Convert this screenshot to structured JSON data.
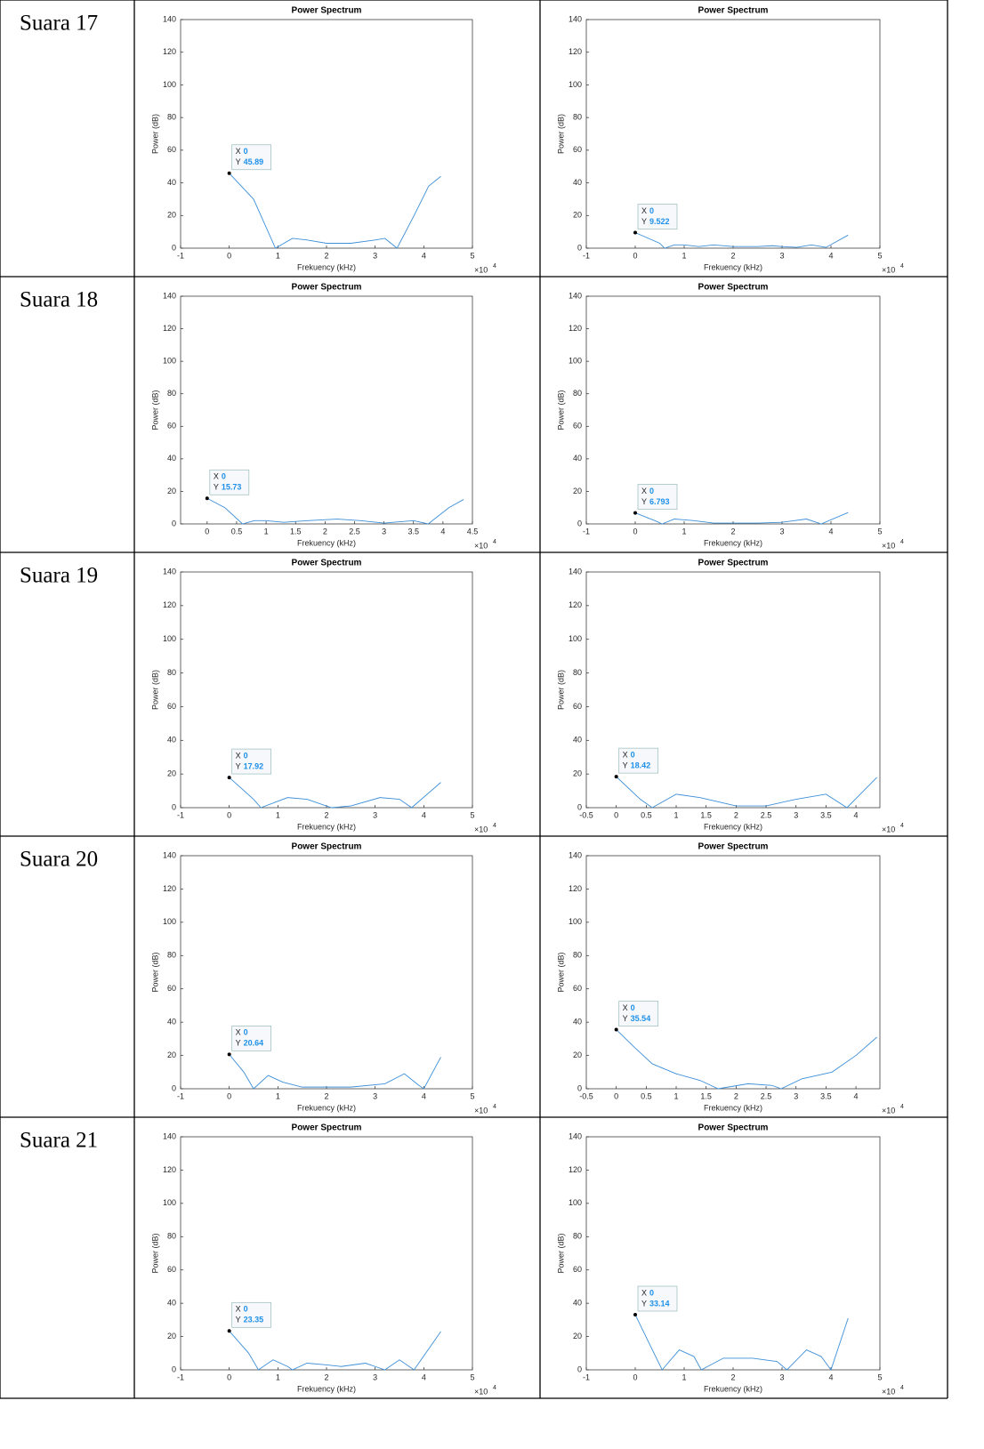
{
  "table": {
    "rows": [
      {
        "label": "Suara 17"
      },
      {
        "label": "Suara 18"
      },
      {
        "label": "Suara 19"
      },
      {
        "label": "Suara 20"
      },
      {
        "label": "Suara 21"
      }
    ]
  },
  "chart_data": [
    {
      "type": "line",
      "title": "Power Spectrum",
      "x_label": "Frekuency (kHz)",
      "y_label": "Power (dB)",
      "x_multiplier": "×10",
      "x_exponent": "4",
      "color": "#3d8fd8",
      "xlim": [
        -1,
        5
      ],
      "xticks": [
        -1,
        0,
        1,
        2,
        3,
        4,
        5
      ],
      "ylim": [
        0,
        140
      ],
      "yticks": [
        0,
        20,
        40,
        60,
        80,
        100,
        120,
        140
      ],
      "x": [
        0,
        0.5,
        0.95,
        1.3,
        1.6,
        2,
        2.5,
        3,
        3.2,
        3.45,
        3.8,
        4.1,
        4.35
      ],
      "values": [
        45.89,
        30,
        0,
        6,
        5,
        3,
        3,
        5,
        6,
        0,
        20,
        38,
        44
      ],
      "annotation": {
        "x_name": "X",
        "y_name": "Y",
        "x": 0,
        "y": 45.89
      }
    },
    {
      "type": "line",
      "title": "Power Spectrum",
      "x_label": "Frekuency (kHz)",
      "y_label": "Power (dB)",
      "x_multiplier": "×10",
      "x_exponent": "4",
      "color": "#3d8fd8",
      "xlim": [
        -1,
        5
      ],
      "xticks": [
        -1,
        0,
        1,
        2,
        3,
        4,
        5
      ],
      "ylim": [
        0,
        140
      ],
      "yticks": [
        0,
        20,
        40,
        60,
        80,
        100,
        120,
        140
      ],
      "x": [
        0,
        0.5,
        0.6,
        0.8,
        1,
        1.3,
        1.6,
        2,
        2.5,
        2.8,
        3,
        3.3,
        3.6,
        3.9,
        4.35
      ],
      "values": [
        9.522,
        3,
        0,
        2,
        2,
        1,
        2,
        1,
        1,
        1.5,
        1,
        0.5,
        2,
        0.5,
        8
      ],
      "annotation": {
        "x_name": "X",
        "y_name": "Y",
        "x": 0,
        "y": 9.522
      }
    },
    {
      "type": "line",
      "title": "Power Spectrum",
      "x_label": "Frekuency (kHz)",
      "y_label": "Power (dB)",
      "x_multiplier": "×10",
      "x_exponent": "4",
      "color": "#3d8fd8",
      "xlim": [
        -0.45,
        4.5
      ],
      "xticks": [
        0,
        0.5,
        1,
        1.5,
        2,
        2.5,
        3,
        3.5,
        4,
        4.5
      ],
      "ylim": [
        0,
        140
      ],
      "yticks": [
        0,
        20,
        40,
        60,
        80,
        100,
        120,
        140
      ],
      "x": [
        0,
        0.3,
        0.6,
        0.8,
        1,
        1.3,
        1.7,
        2.2,
        2.6,
        3,
        3.5,
        3.75,
        4.1,
        4.35
      ],
      "values": [
        15.73,
        10,
        0,
        2,
        2,
        1,
        2,
        3,
        2,
        0.5,
        2,
        0,
        10,
        15
      ],
      "annotation": {
        "x_name": "X",
        "y_name": "Y",
        "x": 0,
        "y": 15.73
      }
    },
    {
      "type": "line",
      "title": "Power Spectrum",
      "x_label": "Frekuency (kHz)",
      "y_label": "Power (dB)",
      "x_multiplier": "×10",
      "x_exponent": "4",
      "color": "#3d8fd8",
      "xlim": [
        -1,
        5
      ],
      "xticks": [
        -1,
        0,
        1,
        2,
        3,
        4,
        5
      ],
      "ylim": [
        0,
        140
      ],
      "yticks": [
        0,
        20,
        40,
        60,
        80,
        100,
        120,
        140
      ],
      "x": [
        0,
        0.4,
        0.55,
        0.8,
        1.2,
        1.6,
        2,
        2.5,
        3,
        3.5,
        3.8,
        4.35
      ],
      "values": [
        6.793,
        2,
        0,
        3,
        2,
        0.5,
        0.5,
        0.5,
        1,
        3,
        0,
        7
      ],
      "annotation": {
        "x_name": "X",
        "y_name": "Y",
        "x": 0,
        "y": 6.793
      }
    },
    {
      "type": "line",
      "title": "Power Spectrum",
      "x_label": "Frekuency (kHz)",
      "y_label": "Power (dB)",
      "x_multiplier": "×10",
      "x_exponent": "4",
      "color": "#3d8fd8",
      "xlim": [
        -1,
        5
      ],
      "xticks": [
        -1,
        0,
        1,
        2,
        3,
        4,
        5
      ],
      "ylim": [
        0,
        140
      ],
      "yticks": [
        0,
        20,
        40,
        60,
        80,
        100,
        120,
        140
      ],
      "x": [
        0,
        0.5,
        0.65,
        1.2,
        1.6,
        2.1,
        2.5,
        3.1,
        3.5,
        3.75,
        4.35
      ],
      "values": [
        17.92,
        5,
        0,
        6,
        5,
        0,
        1,
        6,
        5,
        0,
        15
      ],
      "annotation": {
        "x_name": "X",
        "y_name": "Y",
        "x": 0,
        "y": 17.92
      }
    },
    {
      "type": "line",
      "title": "Power Spectrum",
      "x_label": "Frekuency (kHz)",
      "y_label": "Power (dB)",
      "x_multiplier": "×10",
      "x_exponent": "4",
      "color": "#3d8fd8",
      "xlim": [
        -0.5,
        4.4
      ],
      "xticks": [
        -0.5,
        0,
        0.5,
        1,
        1.5,
        2,
        2.5,
        3,
        3.5,
        4
      ],
      "ylim": [
        0,
        140
      ],
      "yticks": [
        0,
        20,
        40,
        60,
        80,
        100,
        120,
        140
      ],
      "x": [
        0,
        0.4,
        0.6,
        1,
        1.4,
        2,
        2.5,
        3,
        3.5,
        3.85,
        4.35
      ],
      "values": [
        18.42,
        5,
        0,
        8,
        6,
        1,
        1,
        5,
        8,
        0,
        18
      ],
      "annotation": {
        "x_name": "X",
        "y_name": "Y",
        "x": 0,
        "y": 18.42
      }
    },
    {
      "type": "line",
      "title": "Power Spectrum",
      "x_label": "Frekuency (kHz)",
      "y_label": "Power (dB)",
      "x_multiplier": "×10",
      "x_exponent": "4",
      "color": "#3d8fd8",
      "xlim": [
        -1,
        5
      ],
      "xticks": [
        -1,
        0,
        1,
        2,
        3,
        4,
        5
      ],
      "ylim": [
        0,
        140
      ],
      "yticks": [
        0,
        20,
        40,
        60,
        80,
        100,
        120,
        140
      ],
      "x": [
        0,
        0.3,
        0.5,
        0.8,
        1.1,
        1.5,
        2,
        2.5,
        3.2,
        3.6,
        3.9,
        4,
        4.35
      ],
      "values": [
        20.64,
        10,
        0,
        8,
        4,
        1,
        1,
        1,
        3,
        9,
        2,
        0,
        19
      ],
      "annotation": {
        "x_name": "X",
        "y_name": "Y",
        "x": 0,
        "y": 20.64
      }
    },
    {
      "type": "line",
      "title": "Power Spectrum",
      "x_label": "Frekuency (kHz)",
      "y_label": "Power (dB)",
      "x_multiplier": "×10",
      "x_exponent": "4",
      "color": "#3d8fd8",
      "xlim": [
        -0.5,
        4.4
      ],
      "xticks": [
        -0.5,
        0,
        0.5,
        1,
        1.5,
        2,
        2.5,
        3,
        3.5,
        4
      ],
      "ylim": [
        0,
        140
      ],
      "yticks": [
        0,
        20,
        40,
        60,
        80,
        100,
        120,
        140
      ],
      "x": [
        0,
        0.3,
        0.6,
        1,
        1.4,
        1.7,
        2.2,
        2.6,
        2.75,
        3.1,
        3.6,
        4,
        4.35
      ],
      "values": [
        35.54,
        25,
        15,
        9,
        5,
        0,
        3,
        2,
        0,
        6,
        10,
        20,
        31
      ],
      "annotation": {
        "x_name": "X",
        "y_name": "Y",
        "x": 0,
        "y": 35.54
      }
    },
    {
      "type": "line",
      "title": "Power Spectrum",
      "x_label": "Frekuency (kHz)",
      "y_label": "Power (dB)",
      "x_multiplier": "×10",
      "x_exponent": "4",
      "color": "#3d8fd8",
      "xlim": [
        -1,
        5
      ],
      "xticks": [
        -1,
        0,
        1,
        2,
        3,
        4,
        5
      ],
      "ylim": [
        0,
        140
      ],
      "yticks": [
        0,
        20,
        40,
        60,
        80,
        100,
        120,
        140
      ],
      "x": [
        0,
        0.4,
        0.6,
        0.9,
        1.2,
        1.3,
        1.6,
        2,
        2.3,
        2.8,
        3,
        3.2,
        3.5,
        3.8,
        4.35
      ],
      "values": [
        23.35,
        10,
        0,
        6,
        2,
        0,
        4,
        3,
        2,
        4,
        2,
        0,
        6,
        0,
        23
      ],
      "annotation": {
        "x_name": "X",
        "y_name": "Y",
        "x": 0,
        "y": 23.35
      }
    },
    {
      "type": "line",
      "title": "Power Spectrum",
      "x_label": "Frekuency (kHz)",
      "y_label": "Power (dB)",
      "x_multiplier": "×10",
      "x_exponent": "4",
      "color": "#3d8fd8",
      "xlim": [
        -1,
        5
      ],
      "xticks": [
        -1,
        0,
        1,
        2,
        3,
        4,
        5
      ],
      "ylim": [
        0,
        140
      ],
      "yticks": [
        0,
        20,
        40,
        60,
        80,
        100,
        120,
        140
      ],
      "x": [
        0,
        0.3,
        0.55,
        0.9,
        1.2,
        1.35,
        1.8,
        2.4,
        2.9,
        3.1,
        3.5,
        3.8,
        4,
        4.35
      ],
      "values": [
        33.14,
        15,
        0,
        12,
        8,
        0,
        7,
        7,
        5,
        0,
        12,
        8,
        0,
        31
      ],
      "annotation": {
        "x_name": "X",
        "y_name": "Y",
        "x": 0,
        "y": 33.14
      }
    }
  ]
}
